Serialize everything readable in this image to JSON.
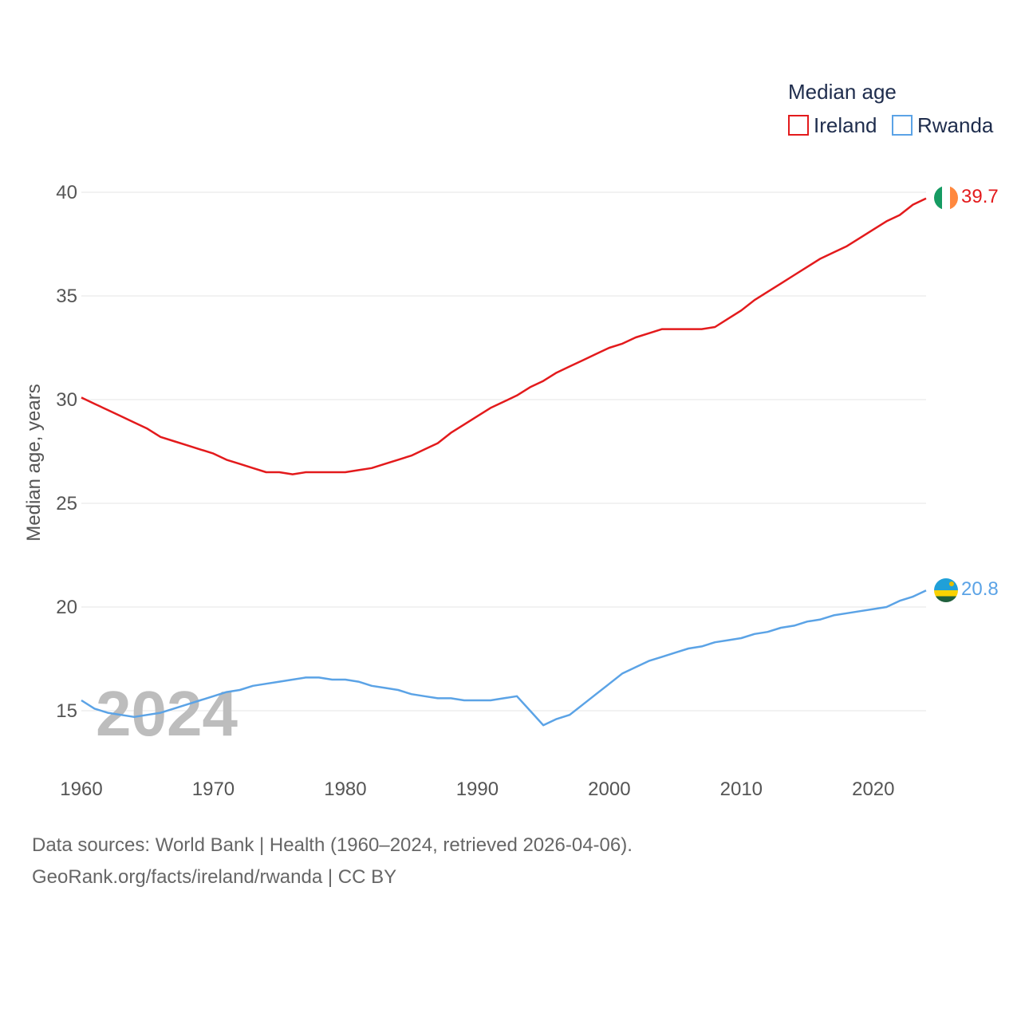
{
  "chart_data": {
    "type": "line",
    "title": "",
    "legend_title": "Median age",
    "xlabel": "",
    "ylabel": "Median age, years",
    "xlim": [
      1960,
      2024
    ],
    "ylim": [
      13,
      41
    ],
    "y_ticks": [
      15,
      20,
      25,
      30,
      35,
      40
    ],
    "x_ticks": [
      1960,
      1970,
      1980,
      1990,
      2000,
      2010,
      2020
    ],
    "grid": true,
    "legend_position": "top-right",
    "overlay_year": "2024",
    "series": [
      {
        "name": "Ireland",
        "color": "#e31a1c",
        "flag": "ireland-flag",
        "end_label": "39.7",
        "x": [
          1960,
          1961,
          1962,
          1963,
          1964,
          1965,
          1966,
          1967,
          1968,
          1969,
          1970,
          1971,
          1972,
          1973,
          1974,
          1975,
          1976,
          1977,
          1978,
          1979,
          1980,
          1981,
          1982,
          1983,
          1984,
          1985,
          1986,
          1987,
          1988,
          1989,
          1990,
          1991,
          1992,
          1993,
          1994,
          1995,
          1996,
          1997,
          1998,
          1999,
          2000,
          2001,
          2002,
          2003,
          2004,
          2005,
          2006,
          2007,
          2008,
          2009,
          2010,
          2011,
          2012,
          2013,
          2014,
          2015,
          2016,
          2017,
          2018,
          2019,
          2020,
          2021,
          2022,
          2023,
          2024
        ],
        "values": [
          30.1,
          29.8,
          29.5,
          29.2,
          28.9,
          28.6,
          28.2,
          28.0,
          27.8,
          27.6,
          27.4,
          27.1,
          26.9,
          26.7,
          26.5,
          26.5,
          26.4,
          26.5,
          26.5,
          26.5,
          26.5,
          26.6,
          26.7,
          26.9,
          27.1,
          27.3,
          27.6,
          27.9,
          28.4,
          28.8,
          29.2,
          29.6,
          29.9,
          30.2,
          30.6,
          30.9,
          31.3,
          31.6,
          31.9,
          32.2,
          32.5,
          32.7,
          33.0,
          33.2,
          33.4,
          33.4,
          33.4,
          33.4,
          33.5,
          33.9,
          34.3,
          34.8,
          35.2,
          35.6,
          36.0,
          36.4,
          36.8,
          37.1,
          37.4,
          37.8,
          38.2,
          38.6,
          38.9,
          39.4,
          39.7
        ]
      },
      {
        "name": "Rwanda",
        "color": "#5ba3e6",
        "flag": "rwanda-flag",
        "end_label": "20.8",
        "x": [
          1960,
          1961,
          1962,
          1963,
          1964,
          1965,
          1966,
          1967,
          1968,
          1969,
          1970,
          1971,
          1972,
          1973,
          1974,
          1975,
          1976,
          1977,
          1978,
          1979,
          1980,
          1981,
          1982,
          1983,
          1984,
          1985,
          1986,
          1987,
          1988,
          1989,
          1990,
          1991,
          1992,
          1993,
          1994,
          1995,
          1996,
          1997,
          1998,
          1999,
          2000,
          2001,
          2002,
          2003,
          2004,
          2005,
          2006,
          2007,
          2008,
          2009,
          2010,
          2011,
          2012,
          2013,
          2014,
          2015,
          2016,
          2017,
          2018,
          2019,
          2020,
          2021,
          2022,
          2023,
          2024
        ],
        "values": [
          15.5,
          15.1,
          14.9,
          14.8,
          14.7,
          14.8,
          14.9,
          15.1,
          15.3,
          15.5,
          15.7,
          15.9,
          16.0,
          16.2,
          16.3,
          16.4,
          16.5,
          16.6,
          16.6,
          16.5,
          16.5,
          16.4,
          16.2,
          16.1,
          16.0,
          15.8,
          15.7,
          15.6,
          15.6,
          15.5,
          15.5,
          15.5,
          15.6,
          15.7,
          15.0,
          14.3,
          14.6,
          14.8,
          15.3,
          15.8,
          16.3,
          16.8,
          17.1,
          17.4,
          17.6,
          17.8,
          18.0,
          18.1,
          18.3,
          18.4,
          18.5,
          18.7,
          18.8,
          19.0,
          19.1,
          19.3,
          19.4,
          19.6,
          19.7,
          19.8,
          19.9,
          20.0,
          20.3,
          20.5,
          20.8
        ]
      }
    ]
  },
  "source": {
    "line1": "Data sources: World Bank | Health (1960–2024, retrieved 2026-04-06).",
    "line2": "GeoRank.org/facts/ireland/rwanda | CC BY"
  }
}
